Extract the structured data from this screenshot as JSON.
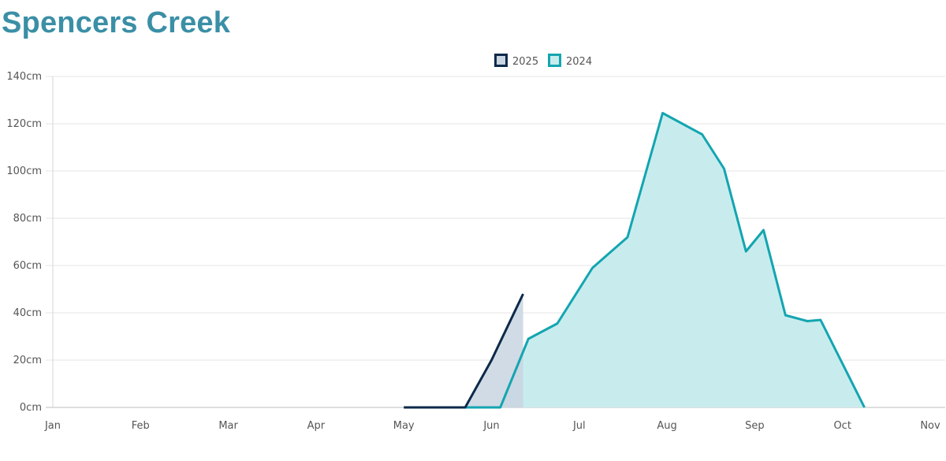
{
  "title": "Spencers Creek",
  "legend": {
    "position": "top-center",
    "items": [
      {
        "label": "2025",
        "stroke": "#0d2a4a",
        "fill": "#c9d5e0"
      },
      {
        "label": "2024",
        "stroke": "#13a5b0",
        "fill": "#c8ecee"
      }
    ]
  },
  "chart_data": {
    "type": "area",
    "title": "Spencers Creek",
    "xlabel": "",
    "ylabel": "",
    "x_axis": {
      "unit": "month",
      "ticks": [
        "Jan",
        "Feb",
        "Mar",
        "Apr",
        "May",
        "Jun",
        "Jul",
        "Aug",
        "Sep",
        "Oct",
        "Nov"
      ]
    },
    "y_axis": {
      "ticks": [
        "0cm",
        "20cm",
        "40cm",
        "60cm",
        "80cm",
        "100cm",
        "120cm",
        "140cm"
      ],
      "ylim": [
        0,
        140
      ],
      "unit": "cm"
    },
    "grid": {
      "horizontal": true,
      "vertical": false
    },
    "series": [
      {
        "name": "2025",
        "color": "#0d2a4a",
        "fill": "#c9d5e0",
        "points": [
          {
            "month": 4.0,
            "value": 0
          },
          {
            "month": 4.7,
            "value": 0
          },
          {
            "month": 5.0,
            "value": 20
          },
          {
            "month": 5.36,
            "value": 48
          }
        ]
      },
      {
        "name": "2024",
        "color": "#13a5b0",
        "fill": "#c8ecee",
        "points": [
          {
            "month": 4.7,
            "value": 0
          },
          {
            "month": 5.1,
            "value": 0
          },
          {
            "month": 5.42,
            "value": 29
          },
          {
            "month": 5.75,
            "value": 35.5
          },
          {
            "month": 6.15,
            "value": 59
          },
          {
            "month": 6.55,
            "value": 72
          },
          {
            "month": 6.95,
            "value": 124.5
          },
          {
            "month": 7.4,
            "value": 115.5
          },
          {
            "month": 7.65,
            "value": 101
          },
          {
            "month": 7.9,
            "value": 66
          },
          {
            "month": 8.1,
            "value": 75
          },
          {
            "month": 8.35,
            "value": 39
          },
          {
            "month": 8.6,
            "value": 36.5
          },
          {
            "month": 8.75,
            "value": 37
          },
          {
            "month": 9.25,
            "value": 0
          }
        ]
      }
    ]
  }
}
